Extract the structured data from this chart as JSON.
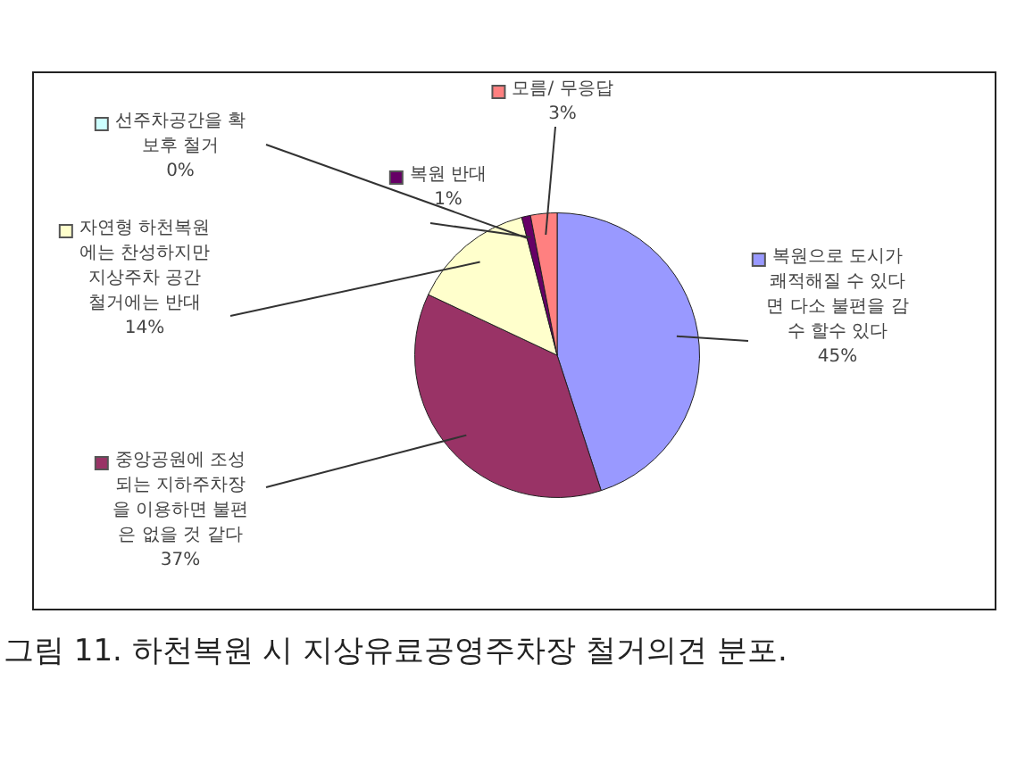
{
  "chart_data": {
    "type": "pie",
    "categories": [
      "복원으로 도시가 쾌적해질 수 있다면 다소 불편을 감수 할수 있다",
      "중앙공원에 조성되는 지하주차장을 이용하면 불편은 없을 것 같다",
      "자연형 하천복원에는 찬성하지만 지상주차 공간 철거에는 반대",
      "선주차공간을 확보후 철거",
      "복원 반대",
      "모름/ 무응답"
    ],
    "values": [
      45,
      37,
      14,
      0,
      1,
      3
    ],
    "colors": [
      "#9999ff",
      "#993366",
      "#ffffcc",
      "#ccffff",
      "#660066",
      "#ff8080"
    ],
    "value_labels": [
      "45%",
      "37%",
      "14%",
      "0%",
      "1%",
      "3%"
    ],
    "legend": "left",
    "annotations": [
      "그림 11. 하천복원 시 지상유료공영주차장 철거의견 분포."
    ]
  }
}
